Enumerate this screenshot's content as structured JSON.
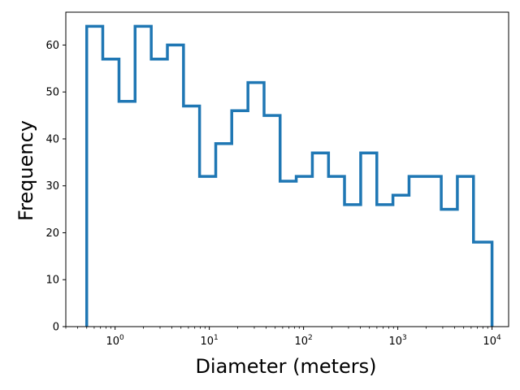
{
  "chart_data": {
    "type": "histogram",
    "style": "step",
    "xlabel": "Diameter (meters)",
    "ylabel": "Frequency",
    "xscale": "log",
    "xlim": [
      0.3,
      15000
    ],
    "ylim": [
      0,
      67
    ],
    "grid": false,
    "legend": "none",
    "bin_edges": [
      0.5,
      0.74,
      1.1,
      1.63,
      2.42,
      3.59,
      5.32,
      7.88,
      11.7,
      17.3,
      25.7,
      38.1,
      56.4,
      83.6,
      124,
      184,
      272,
      404,
      599,
      888,
      1316,
      1951,
      2892,
      4287,
      6356,
      10000
    ],
    "counts": [
      64,
      57,
      48,
      64,
      57,
      60,
      47,
      32,
      39,
      46,
      52,
      45,
      31,
      32,
      37,
      32,
      26,
      37,
      26,
      28,
      32,
      32,
      25,
      32,
      18
    ],
    "x_ticks": [
      {
        "value": 1,
        "base": "10",
        "exp": "0"
      },
      {
        "value": 10,
        "base": "10",
        "exp": "1"
      },
      {
        "value": 100,
        "base": "10",
        "exp": "2"
      },
      {
        "value": 1000,
        "base": "10",
        "exp": "3"
      },
      {
        "value": 10000,
        "base": "10",
        "exp": "4"
      }
    ],
    "y_ticks": [
      0,
      10,
      20,
      30,
      40,
      50,
      60
    ],
    "line_color": "#1f77b4"
  }
}
